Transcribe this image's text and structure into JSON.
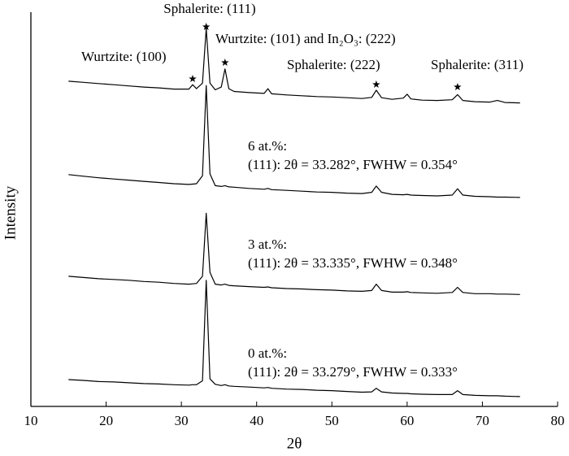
{
  "chart_data": {
    "type": "line",
    "x_label": "2θ",
    "y_label": "Intensity",
    "xlim": [
      10,
      80
    ],
    "xticks": [
      10,
      20,
      30,
      40,
      50,
      60,
      70,
      80
    ],
    "ylim": [
      0,
      100
    ],
    "color": "#000000",
    "x": [
      15,
      17,
      19,
      21,
      23,
      25,
      27,
      29,
      31,
      31.5,
      32,
      32.8,
      33.3,
      33.8,
      34.5,
      35.3,
      35.8,
      36.3,
      37,
      39,
      41,
      41.5,
      42,
      44,
      46,
      48,
      50,
      52,
      54,
      55.3,
      55.9,
      56.6,
      58,
      59.5,
      60,
      60.5,
      62,
      64,
      66,
      66.7,
      67.4,
      69,
      71,
      72,
      73,
      75
    ],
    "series": [
      {
        "name": "0 at.%:",
        "note": "(111): 2θ = 33.279°, FWHW = 0.333°",
        "values": [
          6.8,
          6.6,
          6.3,
          6.2,
          6.0,
          5.8,
          5.7,
          5.5,
          5.4,
          5.5,
          5.5,
          6.5,
          32,
          7,
          5.6,
          5.3,
          5.5,
          5.2,
          5.1,
          4.9,
          4.7,
          4.8,
          4.6,
          4.4,
          4.3,
          4.1,
          4.0,
          3.8,
          3.6,
          3.7,
          4.6,
          3.7,
          3.4,
          3.3,
          3.3,
          3.2,
          3.1,
          3.0,
          3.0,
          4.0,
          3.0,
          2.8,
          2.7,
          2.7,
          2.6,
          2.5
        ]
      },
      {
        "name": "3 at.%:",
        "note": "(111): 2θ = 33.335°, FWHW = 0.348°",
        "values": [
          33,
          32.7,
          32.4,
          32.2,
          32,
          31.7,
          31.5,
          31.2,
          31,
          31.1,
          31.2,
          33,
          49,
          34,
          31,
          30.8,
          31,
          30.7,
          30.6,
          30.4,
          30.2,
          30.3,
          30.1,
          29.9,
          29.8,
          29.6,
          29.5,
          29.3,
          29.2,
          29.4,
          31.0,
          29.4,
          29.0,
          29.0,
          29.1,
          28.9,
          28.8,
          28.7,
          28.9,
          30.2,
          28.9,
          28.6,
          28.6,
          28.5,
          28.5,
          28.4
        ]
      },
      {
        "name": "6 at.%:",
        "note": "(111): 2θ = 33.282°, FWHW = 0.354°",
        "values": [
          58.8,
          58.4,
          58.0,
          57.7,
          57.4,
          57.1,
          56.8,
          56.5,
          56.3,
          56.4,
          56.5,
          58.5,
          81.4,
          59,
          56,
          55.8,
          56,
          55.7,
          55.6,
          55.3,
          55.1,
          55.3,
          55,
          54.8,
          54.6,
          54.4,
          54.3,
          54.1,
          54,
          54.3,
          55.9,
          54.3,
          53.8,
          53.7,
          53.8,
          53.6,
          53.5,
          53.4,
          53.6,
          55.2,
          53.6,
          53.3,
          53.2,
          53.1,
          53.1,
          53
        ]
      },
      {
        "values": [
          82.5,
          82.2,
          81.9,
          81.6,
          81.3,
          81.0,
          80.8,
          80.5,
          80.5,
          81.6,
          80.6,
          82,
          95.9,
          82,
          80.3,
          81,
          85.6,
          80.6,
          79.9,
          79.6,
          79.4,
          80.6,
          79.3,
          79,
          78.8,
          78.6,
          78.5,
          78.3,
          78.1,
          78.4,
          80.2,
          78.3,
          77.9,
          78.2,
          79.2,
          78,
          77.7,
          77.6,
          77.8,
          79.1,
          77.6,
          77.3,
          77.2,
          77.6,
          77.1,
          77
        ]
      }
    ],
    "annotations": [
      {
        "text": "Wurtzite: (100)",
        "x": 31.5
      },
      {
        "text": "Sphalerite: (111)",
        "x": 33.3
      },
      {
        "text": "Wurtzite: (101) and In₂O₃: (222)",
        "x": 35.8
      },
      {
        "text": "Sphalerite: (222)",
        "x": 55.9
      },
      {
        "text": "Sphalerite: (311)",
        "x": 66.7
      }
    ]
  }
}
